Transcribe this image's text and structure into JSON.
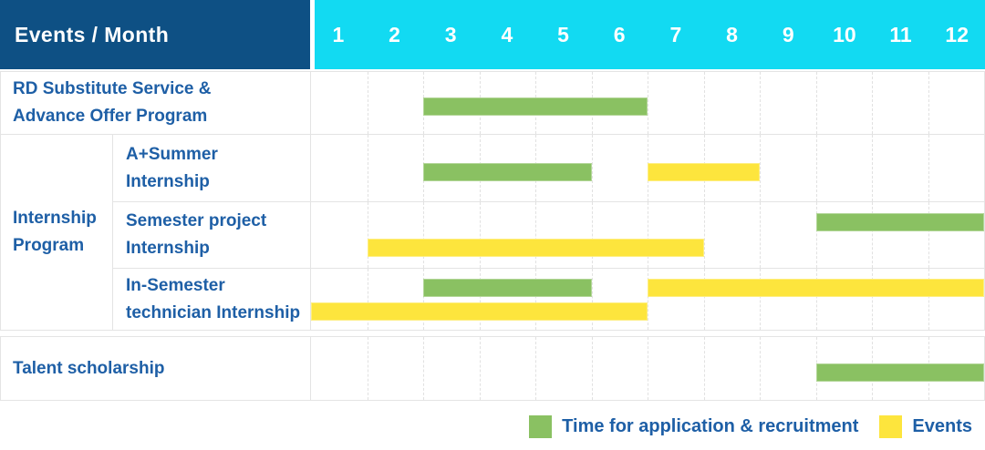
{
  "header": {
    "row_label": "Events / Month",
    "months": [
      "1",
      "2",
      "3",
      "4",
      "5",
      "6",
      "7",
      "8",
      "9",
      "10",
      "11",
      "12"
    ]
  },
  "colors": {
    "header_navy": "#0e5084",
    "header_cyan": "#12daf2",
    "label_text": "#1e5fa6",
    "green": "#8ac162",
    "yellow": "#fde53d",
    "grid": "#e4e4e4"
  },
  "chart_data": {
    "type": "gantt",
    "x_axis": {
      "unit": "month",
      "ticks": [
        "1",
        "2",
        "3",
        "4",
        "5",
        "6",
        "7",
        "8",
        "9",
        "10",
        "11",
        "12"
      ],
      "range": [
        1,
        12
      ]
    },
    "grid": "dashed-vertical-month-lines",
    "legend_position": "bottom-right",
    "series_colors": {
      "green": "#8ac162",
      "yellow": "#fde53d"
    },
    "group": {
      "label_lines": [
        "Internship",
        "Program"
      ]
    },
    "rows": [
      {
        "group": "",
        "label": "RD Substitute Service & Advance Offer Program",
        "label_lines": [
          "RD Substitute Service &",
          "Advance Offer Program"
        ],
        "bars": [
          {
            "series": "green",
            "start_month": 3,
            "end_month": 6,
            "track": "center"
          }
        ]
      },
      {
        "group": "Internship Program",
        "label": "A+Summer Internship",
        "label_lines": [
          "A+Summer",
          "Internship"
        ],
        "bars": [
          {
            "series": "green",
            "start_month": 3,
            "end_month": 5,
            "track": "center"
          },
          {
            "series": "yellow",
            "start_month": 7,
            "end_month": 8,
            "track": "center"
          }
        ]
      },
      {
        "group": "Internship Program",
        "label": "Semester project Internship",
        "label_lines": [
          "Semester project",
          "Internship"
        ],
        "bars": [
          {
            "series": "green",
            "start_month": 10,
            "end_month": 12,
            "track": "upper"
          },
          {
            "series": "yellow",
            "start_month": 2,
            "end_month": 7,
            "track": "lower"
          }
        ]
      },
      {
        "group": "Internship Program",
        "label": "In-Semester technician Internship",
        "label_lines": [
          "In-Semester",
          "technician Internship"
        ],
        "bars": [
          {
            "series": "green",
            "start_month": 3,
            "end_month": 5,
            "track": "upper"
          },
          {
            "series": "yellow",
            "start_month": 7,
            "end_month": 12,
            "track": "upper"
          },
          {
            "series": "yellow",
            "start_month": 1,
            "end_month": 6,
            "track": "lower"
          }
        ]
      },
      {
        "group": "",
        "label": "Talent scholarship",
        "label_lines": [
          "Talent scholarship"
        ],
        "bars": [
          {
            "series": "green",
            "start_month": 10,
            "end_month": 12,
            "track": "center"
          }
        ]
      }
    ],
    "legend": [
      {
        "series": "green",
        "label": "Time for application & recruitment"
      },
      {
        "series": "yellow",
        "label": "Events"
      }
    ]
  }
}
